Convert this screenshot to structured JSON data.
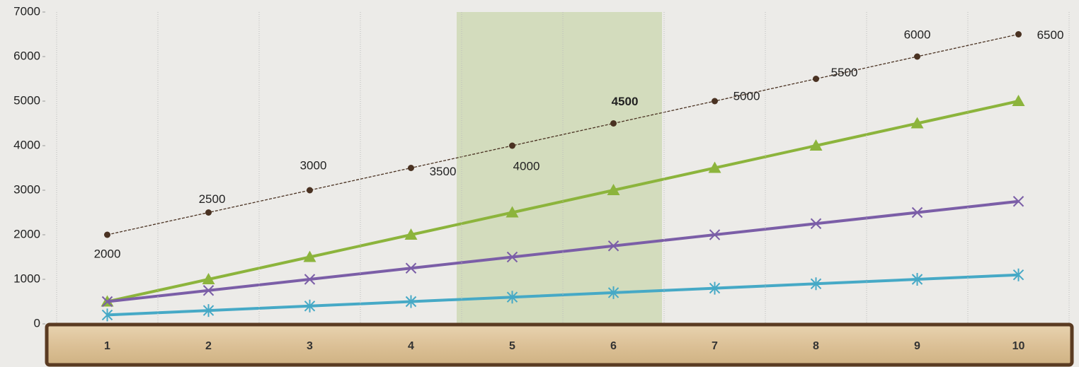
{
  "chart_data": {
    "type": "line",
    "categories": [
      "1",
      "2",
      "3",
      "4",
      "5",
      "6",
      "7",
      "8",
      "9",
      "10"
    ],
    "ylim": [
      0,
      7000
    ],
    "yticks": [
      0,
      1000,
      2000,
      3000,
      4000,
      5000,
      6000,
      7000
    ],
    "series": [
      {
        "color": "#4a3222",
        "marker": "dot",
        "dashed": true,
        "show_labels": true,
        "bold_labels": [
          5
        ],
        "values": [
          2000,
          2500,
          3000,
          3500,
          4000,
          4500,
          5000,
          5500,
          6000,
          6500
        ]
      },
      {
        "color": "#8cb43c",
        "marker": "triangle",
        "values": [
          500,
          1000,
          1500,
          2000,
          2500,
          3000,
          3500,
          4000,
          4500,
          5000
        ]
      },
      {
        "color": "#7b5ea7",
        "marker": "x",
        "values": [
          500,
          750,
          1000,
          1250,
          1500,
          1750,
          2000,
          2250,
          2500,
          2750
        ]
      },
      {
        "color": "#46a9c6",
        "marker": "asterisk",
        "values": [
          200,
          300,
          400,
          500,
          600,
          700,
          800,
          900,
          1000,
          1100
        ]
      }
    ]
  }
}
